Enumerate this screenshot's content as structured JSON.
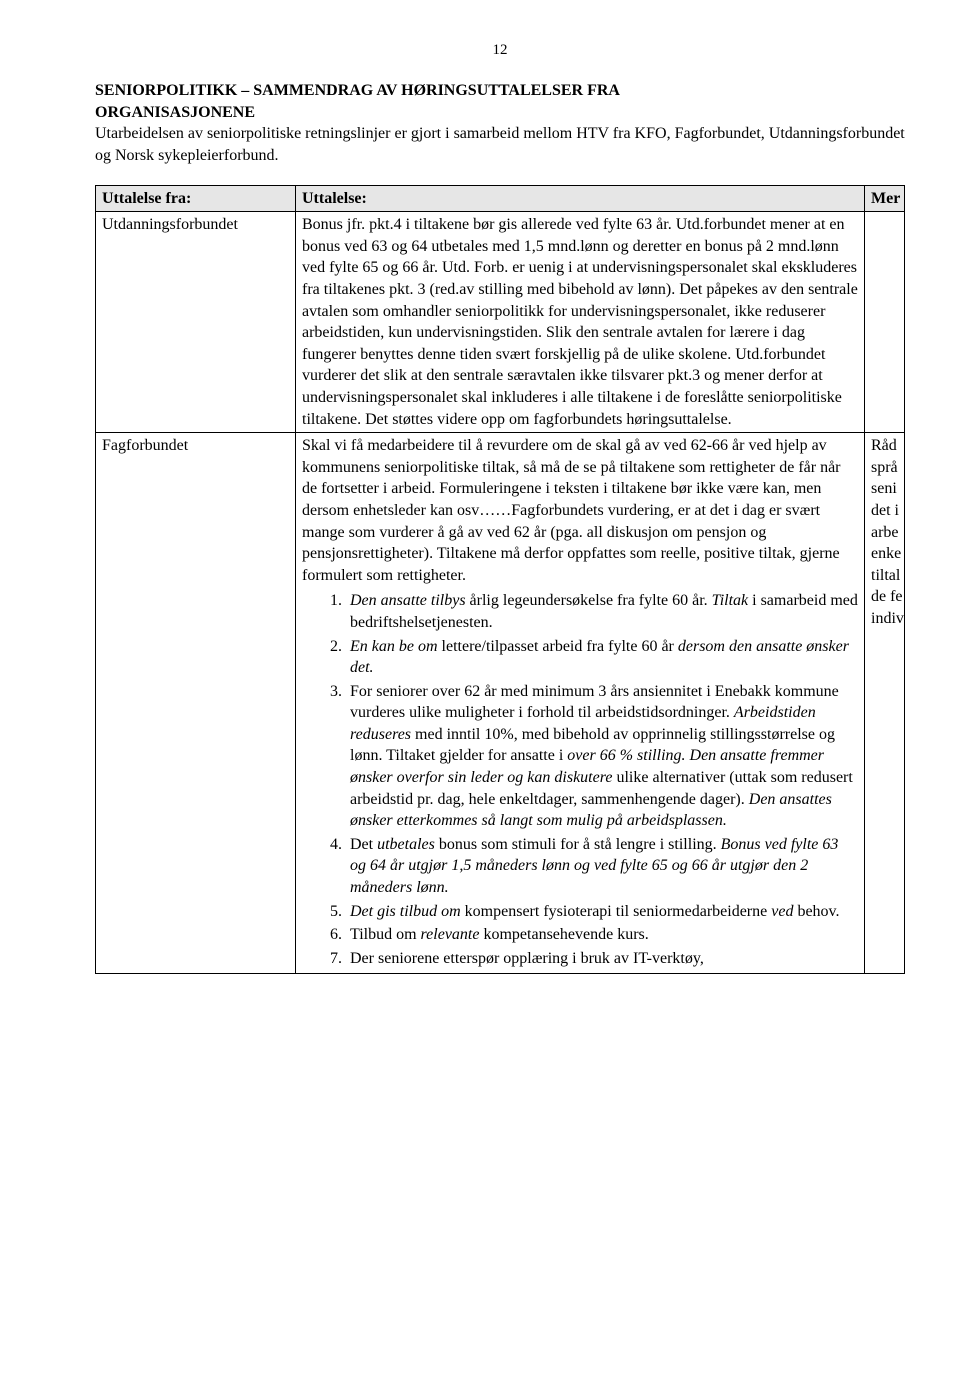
{
  "page_number": "12",
  "title_line1": "SENIORPOLITIKK – SAMMENDRAG AV HØRINGSUTTALELSER FRA",
  "title_line2": "ORGANISASJONENE",
  "intro": "Utarbeidelsen av seniorpolitiske retningslinjer er gjort i samarbeid mellom HTV fra KFO, Fagforbundet, Utdanningsforbundet og Norsk sykepleierforbund.",
  "headers": {
    "from": "Uttalelse  fra:",
    "utt": "Uttalelse:",
    "mer": "Mer"
  },
  "rows": [
    {
      "from": "Utdanningsforbundet",
      "utt_html": "Bonus jfr. pkt.4 i tiltakene bør gis allerede ved fylte 63 år. Utd.forbundet mener at en bonus ved 63 og 64 utbetales med 1,5 mnd.lønn og deretter en bonus på 2 mnd.lønn ved fylte 65 og 66 år. Utd. Forb. er uenig i at undervisningspersonalet skal ekskluderes fra tiltakenes pkt. 3 (red.av stilling med bibehold av lønn). Det påpekes av den sentrale avtalen som omhandler seniorpolitikk for undervisningspersonalet, ikke reduserer arbeidstiden, kun undervisningstiden. Slik den sentrale avtalen for lærere i dag fungerer benyttes denne tiden svært forskjellig på de ulike skolene.  Utd.forbundet vurderer det slik at den sentrale særavtalen ikke tilsvarer pkt.3 og mener derfor at undervisningspersonalet skal inkluderes i alle tiltakene i de foreslåtte seniorpolitiske tiltakene. Det støttes videre opp om fagforbundets høringsuttalelse.",
      "mer": ""
    },
    {
      "from": "Fagforbundet",
      "utt_pre": "Skal vi få medarbeidere til å revurdere om de skal gå av ved 62-66 år ved hjelp av kommunens seniorpolitiske tiltak, så må de se på tiltakene som rettigheter de får når de fortsetter i arbeid. Formuleringene i teksten i tiltakene bør ikke være kan, men dersom enhetsleder kan osv……Fagforbundets vurdering, er at det i dag er svært mange som vurderer å gå av ved 62 år (pga. all diskusjon om pensjon og pensjonsrettigheter). Tiltakene må derfor oppfattes som reelle, positive tiltak, gjerne formulert som rettigheter.",
      "list": [
        "<span class=\"ital\">Den ansatte tilbys</span> årlig legeundersøkelse fra fylte 60 år. <span class=\"ital\">Tiltak</span> i samarbeid med bedriftshelsetjenesten.",
        "<span class=\"ital\">En kan be om</span> lettere/tilpasset arbeid fra fylte 60 år <span class=\"ital\">dersom den ansatte ønsker det.</span>",
        "For seniorer over 62 år med minimum 3 års ansiennitet i Enebakk kommune vurderes ulike muligheter i forhold til arbeidstidsordninger. <span class=\"ital\">Arbeidstiden reduseres</span> med inntil 10%, med bibehold av opprinnelig stillingsstørrelse og lønn. Tiltaket gjelder for ansatte i <span class=\"ital\">over 66 % stilling. Den ansatte fremmer ønsker overfor sin leder og kan diskutere</span> ulike alternativer (uttak som redusert arbeidstid pr. dag, hele enkeltdager, sammenhengende dager). <span class=\"ital\">Den ansattes ønsker etterkommes så langt som mulig på arbeidsplassen.</span>",
        "Det <span class=\"ital\">utbetales</span> bonus som stimuli for å stå lengre i stilling. <span class=\"ital\">Bonus ved fylte 63 og 64 år utgjør 1,5 måneders lønn og ved fylte 65 og 66 år utgjør den 2 måneders lønn.</span>",
        "<span class=\"ital\">Det gis tilbud om</span> kompensert fysioterapi til seniormedarbeiderne <span class=\"ital\">ved</span> behov.",
        "Tilbud om <span class=\"ital\">relevante</span> kompetansehevende kurs.",
        "Der seniorene etterspør opplæring i bruk av IT-verktøy,"
      ],
      "mer_lines": [
        "Råd",
        "språ",
        "seni",
        "det i",
        "arbe",
        "enke",
        "tiltal",
        "de fe",
        "indiv"
      ]
    }
  ]
}
